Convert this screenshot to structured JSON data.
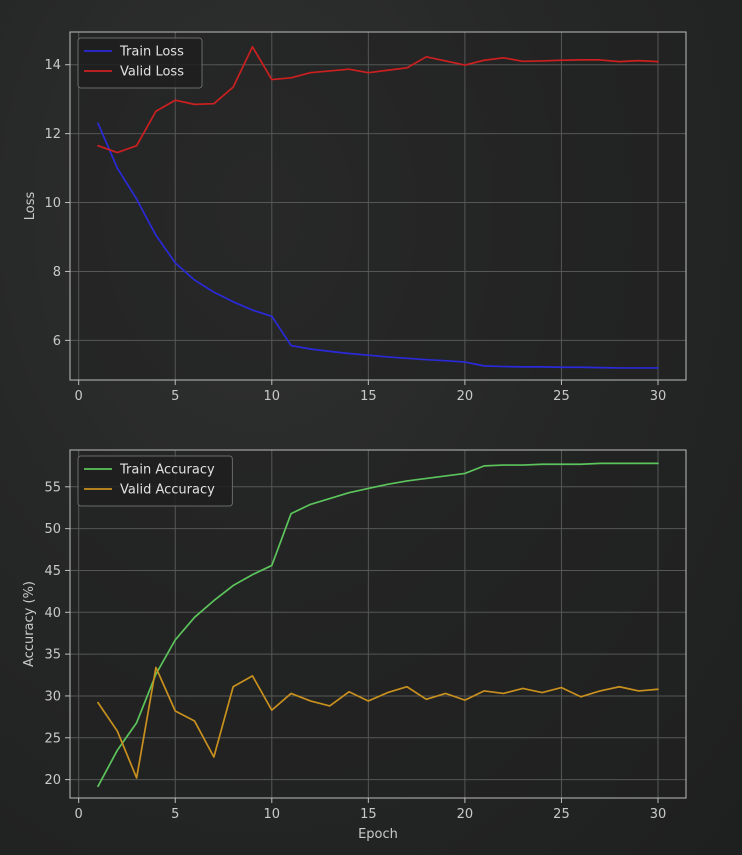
{
  "chart_data": [
    {
      "type": "line",
      "title": "",
      "xlabel": "",
      "ylabel": "Loss",
      "xlim": [
        -0.45,
        31.45
      ],
      "ylim": [
        4.85,
        14.95
      ],
      "xticks": [
        0,
        5,
        10,
        15,
        20,
        25,
        30
      ],
      "yticks": [
        6,
        8,
        10,
        12,
        14
      ],
      "grid": true,
      "legend": "top-left",
      "x": [
        1,
        2,
        3,
        4,
        5,
        6,
        7,
        8,
        9,
        10,
        11,
        12,
        13,
        14,
        15,
        16,
        17,
        18,
        19,
        20,
        21,
        22,
        23,
        24,
        25,
        26,
        27,
        28,
        29,
        30
      ],
      "series": [
        {
          "name": "Train Loss",
          "color": "#2a2ad8",
          "values": [
            12.3,
            11.0,
            10.1,
            9.05,
            8.25,
            7.75,
            7.4,
            7.12,
            6.88,
            6.7,
            5.85,
            5.75,
            5.68,
            5.62,
            5.57,
            5.52,
            5.48,
            5.44,
            5.41,
            5.37,
            5.26,
            5.24,
            5.23,
            5.23,
            5.22,
            5.22,
            5.21,
            5.2,
            5.2,
            5.2
          ]
        },
        {
          "name": "Valid Loss",
          "color": "#cc2020",
          "values": [
            11.65,
            11.45,
            11.65,
            12.65,
            12.97,
            12.85,
            12.87,
            13.35,
            14.52,
            13.57,
            13.62,
            13.77,
            13.82,
            13.87,
            13.77,
            13.84,
            13.91,
            14.23,
            14.11,
            13.99,
            14.13,
            14.2,
            14.1,
            14.11,
            14.13,
            14.14,
            14.14,
            14.09,
            14.12,
            14.09
          ]
        }
      ]
    },
    {
      "type": "line",
      "title": "",
      "xlabel": "Epoch",
      "ylabel": "Accuracy (%)",
      "xlim": [
        -0.45,
        31.45
      ],
      "ylim": [
        17.8,
        59.4
      ],
      "xticks": [
        0,
        5,
        10,
        15,
        20,
        25,
        30
      ],
      "yticks": [
        20,
        25,
        30,
        35,
        40,
        45,
        50,
        55
      ],
      "grid": true,
      "legend": "top-left",
      "x": [
        1,
        2,
        3,
        4,
        5,
        6,
        7,
        8,
        9,
        10,
        11,
        12,
        13,
        14,
        15,
        16,
        17,
        18,
        19,
        20,
        21,
        22,
        23,
        24,
        25,
        26,
        27,
        28,
        29,
        30
      ],
      "series": [
        {
          "name": "Train Accuracy",
          "color": "#5cc45c",
          "values": [
            19.2,
            23.5,
            26.8,
            32.6,
            36.7,
            39.4,
            41.4,
            43.2,
            44.5,
            45.6,
            51.8,
            52.9,
            53.6,
            54.3,
            54.8,
            55.3,
            55.7,
            56.0,
            56.3,
            56.6,
            57.5,
            57.6,
            57.6,
            57.7,
            57.7,
            57.7,
            57.8,
            57.8,
            57.8,
            57.8
          ]
        },
        {
          "name": "Valid Accuracy",
          "color": "#c8901e",
          "values": [
            29.2,
            25.8,
            20.2,
            33.4,
            28.2,
            27.0,
            22.7,
            31.1,
            32.4,
            28.3,
            30.3,
            29.4,
            28.8,
            30.5,
            29.4,
            30.4,
            31.1,
            29.6,
            30.3,
            29.5,
            30.6,
            30.3,
            30.9,
            30.4,
            31.0,
            29.9,
            30.6,
            31.1,
            30.6,
            30.8
          ]
        }
      ]
    }
  ]
}
